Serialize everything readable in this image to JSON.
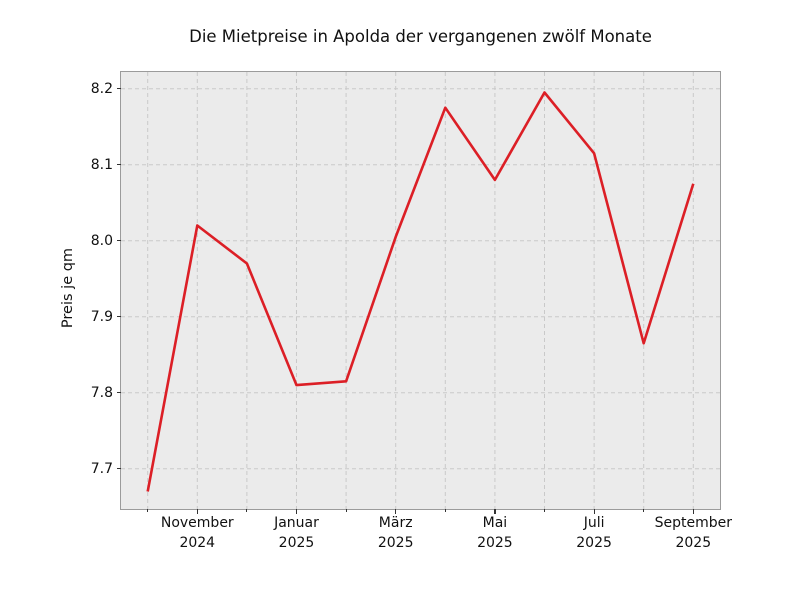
{
  "chart_data": {
    "type": "line",
    "title": "Die Mietpreise in Apolda der vergangenen zwölf Monate",
    "ylabel": "Preis je qm",
    "xlabel": "",
    "n_points": 12,
    "series": [
      {
        "name": "Preis je qm",
        "values": [
          7.67,
          8.02,
          7.97,
          7.81,
          7.815,
          8.005,
          8.175,
          8.08,
          8.195,
          8.115,
          7.865,
          8.075
        ]
      }
    ],
    "x_major_ticks": [
      {
        "index": 1,
        "label_line1": "November",
        "label_line2": "2024"
      },
      {
        "index": 3,
        "label_line1": "Januar",
        "label_line2": "2025"
      },
      {
        "index": 5,
        "label_line1": "März",
        "label_line2": "2025"
      },
      {
        "index": 7,
        "label_line1": "Mai",
        "label_line2": "2025"
      },
      {
        "index": 9,
        "label_line1": "Juli",
        "label_line2": "2025"
      },
      {
        "index": 11,
        "label_line1": "September",
        "label_line2": "2025"
      }
    ],
    "x_minor_tick_indices": [
      0,
      2,
      4,
      6,
      8,
      10
    ],
    "y_ticks": [
      "8.2",
      "8.1",
      "8.0",
      "7.9",
      "7.8",
      "7.7"
    ],
    "y_tick_values": [
      8.2,
      8.1,
      8.0,
      7.9,
      7.8,
      7.7
    ],
    "ylim": [
      7.647,
      8.222
    ],
    "legend": "none",
    "grid": {
      "style": "dashed",
      "vertical": "every month",
      "horizontal": "every 0.1"
    },
    "colors": {
      "line": "#dc1f26",
      "plot_bg": "#ebebeb",
      "grid": "#c9c9c9",
      "fig_bg": "#ffffff",
      "spine": "#9b9b9b",
      "text": "#111111"
    }
  }
}
